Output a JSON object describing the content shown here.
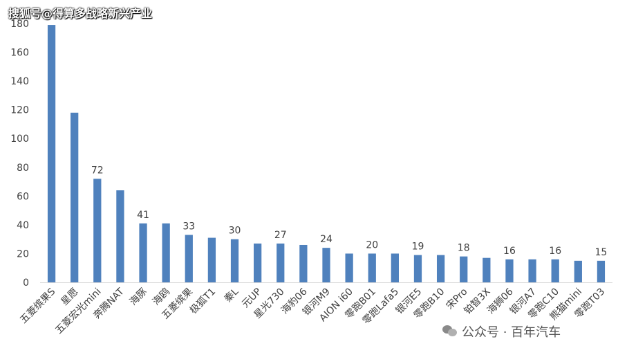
{
  "watermark_top": "搜狐号@得算多战略新兴产业",
  "watermark_bottom": "公众号 · 百年汽车",
  "chart_data": {
    "type": "bar",
    "title": "",
    "xlabel": "",
    "ylabel": "",
    "ylim": [
      0,
      180
    ],
    "yticks": [
      0,
      20,
      40,
      60,
      80,
      100,
      120,
      140,
      160,
      180
    ],
    "grid": false,
    "bar_color": "#4F81BD",
    "categories": [
      "五菱缤果S",
      "星愿",
      "五菱宏光mini",
      "奔腾NAT",
      "海豚",
      "海鸥",
      "五菱缤果",
      "极狐T1",
      "秦L",
      "元UP",
      "星光730",
      "海豹06",
      "银河M9",
      "AION i60",
      "零跑B01",
      "零跑Lafa5",
      "银河E5",
      "零跑B10",
      "宋Pro",
      "铂智3X",
      "海狮06",
      "银河A7",
      "零跑C10",
      "熊猫mini",
      "零跑T03"
    ],
    "values": [
      179,
      118,
      72,
      64,
      41,
      41,
      33,
      31,
      30,
      27,
      27,
      26,
      24,
      20,
      20,
      20,
      19,
      19,
      18,
      17,
      16,
      16,
      16,
      15,
      15
    ],
    "data_labels": [
      null,
      null,
      "72",
      null,
      "41",
      null,
      "33",
      null,
      "30",
      null,
      "27",
      null,
      "24",
      null,
      "20",
      null,
      "19",
      null,
      "18",
      null,
      "16",
      null,
      "16",
      null,
      "15"
    ]
  }
}
